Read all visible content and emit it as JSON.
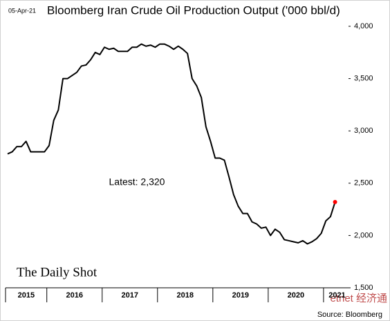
{
  "date": "05-Apr-21",
  "chart_data": {
    "type": "line",
    "title": "Bloomberg Iran Crude Oil Production Output ('000 bbl/d)",
    "annotation": "Latest:  2,320",
    "categories": [
      "2015",
      null,
      null,
      null,
      null,
      null,
      null,
      null,
      null,
      "2016",
      null,
      null,
      null,
      null,
      null,
      null,
      null,
      null,
      null,
      null,
      null,
      "2017",
      null,
      null,
      null,
      null,
      null,
      null,
      null,
      null,
      null,
      null,
      null,
      "2018",
      null,
      null,
      null,
      null,
      null,
      null,
      null,
      null,
      null,
      null,
      null,
      "2019",
      null,
      null,
      null,
      null,
      null,
      null,
      null,
      null,
      null,
      null,
      null,
      "2020",
      null,
      null,
      null,
      null,
      null,
      null,
      null,
      null,
      null,
      null,
      null,
      "2021",
      null,
      null
    ],
    "values": [
      2780,
      2800,
      2850,
      2850,
      2900,
      2800,
      2800,
      2800,
      2800,
      2860,
      3100,
      3200,
      3500,
      3500,
      3530,
      3560,
      3620,
      3630,
      3680,
      3750,
      3730,
      3800,
      3780,
      3790,
      3760,
      3760,
      3760,
      3800,
      3800,
      3830,
      3810,
      3820,
      3800,
      3830,
      3830,
      3810,
      3780,
      3810,
      3780,
      3740,
      3500,
      3430,
      3320,
      3040,
      2900,
      2740,
      2740,
      2720,
      2560,
      2390,
      2280,
      2210,
      2210,
      2130,
      2110,
      2070,
      2080,
      2000,
      2060,
      2030,
      1960,
      1950,
      1940,
      1930,
      1950,
      1920,
      1940,
      1970,
      2020,
      2140,
      2180,
      2320
    ],
    "color": "#000000",
    "last_point_color": "#ff0000",
    "ylim": [
      1500,
      4000
    ],
    "yticks": [
      {
        "value": 1500,
        "label": "1,500"
      },
      {
        "value": 2000,
        "label": "2,000"
      },
      {
        "value": 2500,
        "label": "2,500"
      },
      {
        "value": 3000,
        "label": "3,000"
      },
      {
        "value": 3500,
        "label": "3,500"
      },
      {
        "value": 4000,
        "label": "4,000"
      }
    ],
    "grid": false
  },
  "branding": "The Daily Shot",
  "source": "Source: Bloomberg",
  "watermark": "etnet 经济通"
}
